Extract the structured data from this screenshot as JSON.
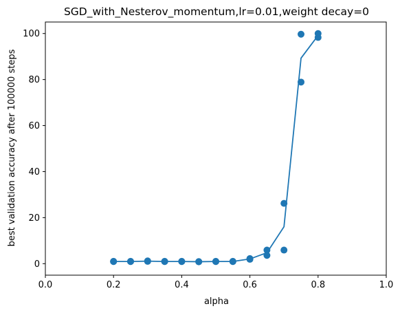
{
  "chart_data": {
    "type": "scatter",
    "title": "SGD_with_Nesterov_momentum,lr=0.01,weight decay=0",
    "xlabel": "alpha",
    "ylabel": "best validation accuracy after 100000 steps",
    "xlim": [
      0.0,
      1.0
    ],
    "ylim": [
      -5,
      105
    ],
    "xticks": [
      "0.0",
      "0.2",
      "0.4",
      "0.6",
      "0.8",
      "1.0"
    ],
    "yticks": [
      "0",
      "20",
      "40",
      "60",
      "80",
      "100"
    ],
    "grid": false,
    "color": "#1f77b4",
    "points": [
      {
        "x": 0.2,
        "y": 0.9
      },
      {
        "x": 0.2,
        "y": 1.0
      },
      {
        "x": 0.25,
        "y": 0.9
      },
      {
        "x": 0.25,
        "y": 1.0
      },
      {
        "x": 0.3,
        "y": 1.0
      },
      {
        "x": 0.3,
        "y": 1.2
      },
      {
        "x": 0.35,
        "y": 0.9
      },
      {
        "x": 0.35,
        "y": 1.0
      },
      {
        "x": 0.4,
        "y": 0.9
      },
      {
        "x": 0.4,
        "y": 1.0
      },
      {
        "x": 0.45,
        "y": 0.9
      },
      {
        "x": 0.45,
        "y": 0.8
      },
      {
        "x": 0.5,
        "y": 0.9
      },
      {
        "x": 0.5,
        "y": 1.0
      },
      {
        "x": 0.55,
        "y": 0.9
      },
      {
        "x": 0.55,
        "y": 1.0
      },
      {
        "x": 0.6,
        "y": 1.9
      },
      {
        "x": 0.6,
        "y": 2.2
      },
      {
        "x": 0.65,
        "y": 3.6
      },
      {
        "x": 0.65,
        "y": 5.9
      },
      {
        "x": 0.7,
        "y": 26.2
      },
      {
        "x": 0.7,
        "y": 5.9
      },
      {
        "x": 0.75,
        "y": 99.7
      },
      {
        "x": 0.75,
        "y": 78.9
      },
      {
        "x": 0.8,
        "y": 98.3
      },
      {
        "x": 0.8,
        "y": 100.0
      }
    ],
    "mean_line": {
      "x": [
        0.2,
        0.25,
        0.3,
        0.35,
        0.4,
        0.45,
        0.5,
        0.55,
        0.6,
        0.65,
        0.7,
        0.75,
        0.8
      ],
      "y": [
        0.95,
        0.95,
        1.1,
        0.95,
        0.95,
        0.85,
        0.95,
        0.95,
        2.05,
        4.75,
        16.05,
        89.3,
        99.15
      ]
    }
  }
}
